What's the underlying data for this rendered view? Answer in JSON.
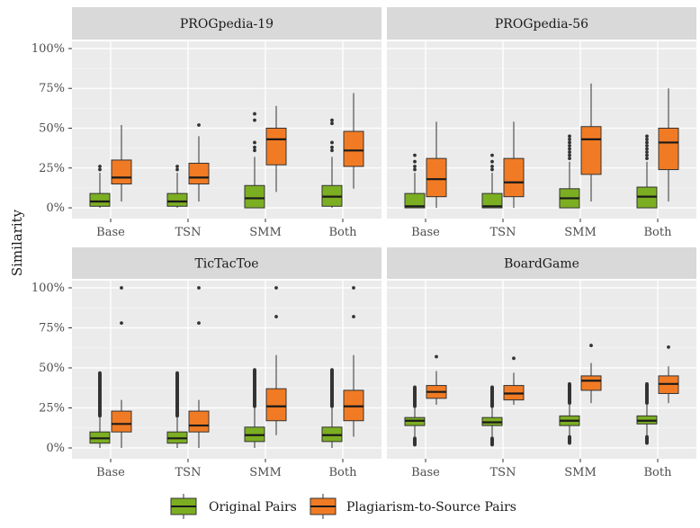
{
  "chart_data": {
    "type": "boxplot",
    "ylabel": "Similarity",
    "y_ticks": [
      "0%",
      "25%",
      "50%",
      "75%",
      "100%"
    ],
    "ylim": [
      0,
      1
    ],
    "categories": [
      "Base",
      "TSN",
      "SMM",
      "Both"
    ],
    "legend": {
      "position": "bottom",
      "entries": [
        {
          "name": "Original Pairs",
          "color": "#7cae22"
        },
        {
          "name": "Plagiarism-to-Source Pairs",
          "color": "#f07b24"
        }
      ]
    },
    "panels": [
      {
        "title": "PROGpedia-19",
        "groups": [
          {
            "category": "Base",
            "original": {
              "min": 0.0,
              "q1": 0.01,
              "median": 0.04,
              "q3": 0.09,
              "max": 0.22,
              "outliers": [
                0.24,
                0.26
              ]
            },
            "plagiarism": {
              "min": 0.04,
              "q1": 0.15,
              "median": 0.19,
              "q3": 0.3,
              "max": 0.52,
              "outliers": []
            }
          },
          {
            "category": "TSN",
            "original": {
              "min": 0.0,
              "q1": 0.01,
              "median": 0.04,
              "q3": 0.09,
              "max": 0.22,
              "outliers": [
                0.24,
                0.26
              ]
            },
            "plagiarism": {
              "min": 0.04,
              "q1": 0.15,
              "median": 0.19,
              "q3": 0.28,
              "max": 0.45,
              "outliers": [
                0.52
              ]
            }
          },
          {
            "category": "SMM",
            "original": {
              "min": 0.0,
              "q1": 0.0,
              "median": 0.06,
              "q3": 0.14,
              "max": 0.32,
              "outliers": [
                0.36,
                0.38,
                0.41,
                0.55,
                0.59
              ]
            },
            "plagiarism": {
              "min": 0.1,
              "q1": 0.27,
              "median": 0.43,
              "q3": 0.5,
              "max": 0.64,
              "outliers": []
            }
          },
          {
            "category": "Both",
            "original": {
              "min": 0.0,
              "q1": 0.01,
              "median": 0.07,
              "q3": 0.14,
              "max": 0.32,
              "outliers": [
                0.36,
                0.38,
                0.41,
                0.53,
                0.55
              ]
            },
            "plagiarism": {
              "min": 0.12,
              "q1": 0.26,
              "median": 0.36,
              "q3": 0.48,
              "max": 0.72,
              "outliers": []
            }
          }
        ]
      },
      {
        "title": "PROGpedia-56",
        "groups": [
          {
            "category": "Base",
            "original": {
              "min": 0.0,
              "q1": 0.0,
              "median": 0.01,
              "q3": 0.09,
              "max": 0.22,
              "outliers": [
                0.24,
                0.26,
                0.29,
                0.33
              ]
            },
            "plagiarism": {
              "min": 0.0,
              "q1": 0.07,
              "median": 0.18,
              "q3": 0.31,
              "max": 0.54,
              "outliers": []
            }
          },
          {
            "category": "TSN",
            "original": {
              "min": 0.0,
              "q1": 0.0,
              "median": 0.01,
              "q3": 0.09,
              "max": 0.22,
              "outliers": [
                0.24,
                0.26,
                0.29,
                0.33
              ]
            },
            "plagiarism": {
              "min": 0.0,
              "q1": 0.07,
              "median": 0.16,
              "q3": 0.31,
              "max": 0.54,
              "outliers": []
            }
          },
          {
            "category": "SMM",
            "original": {
              "min": 0.0,
              "q1": 0.0,
              "median": 0.06,
              "q3": 0.12,
              "max": 0.29,
              "outliers": [
                0.31,
                0.33,
                0.35,
                0.37,
                0.39,
                0.41,
                0.43,
                0.45
              ]
            },
            "plagiarism": {
              "min": 0.04,
              "q1": 0.21,
              "median": 0.43,
              "q3": 0.51,
              "max": 0.78,
              "outliers": []
            }
          },
          {
            "category": "Both",
            "original": {
              "min": 0.0,
              "q1": 0.0,
              "median": 0.07,
              "q3": 0.13,
              "max": 0.29,
              "outliers": [
                0.31,
                0.33,
                0.35,
                0.37,
                0.39,
                0.41,
                0.43,
                0.45
              ]
            },
            "plagiarism": {
              "min": 0.04,
              "q1": 0.24,
              "median": 0.41,
              "q3": 0.5,
              "max": 0.75,
              "outliers": []
            }
          }
        ]
      },
      {
        "title": "TicTacToe",
        "groups": [
          {
            "category": "Base",
            "original": {
              "min": 0.0,
              "q1": 0.03,
              "median": 0.06,
              "q3": 0.1,
              "max": 0.19,
              "outliers_range": [
                0.2,
                0.47
              ]
            },
            "plagiarism": {
              "min": 0.0,
              "q1": 0.1,
              "median": 0.15,
              "q3": 0.23,
              "max": 0.3,
              "outliers": [
                0.78,
                1.0
              ]
            }
          },
          {
            "category": "TSN",
            "original": {
              "min": 0.0,
              "q1": 0.03,
              "median": 0.06,
              "q3": 0.1,
              "max": 0.19,
              "outliers_range": [
                0.2,
                0.47
              ]
            },
            "plagiarism": {
              "min": 0.0,
              "q1": 0.1,
              "median": 0.14,
              "q3": 0.23,
              "max": 0.3,
              "outliers": [
                0.78,
                1.0
              ]
            }
          },
          {
            "category": "SMM",
            "original": {
              "min": 0.0,
              "q1": 0.04,
              "median": 0.08,
              "q3": 0.13,
              "max": 0.25,
              "outliers_range": [
                0.26,
                0.49
              ]
            },
            "plagiarism": {
              "min": 0.08,
              "q1": 0.17,
              "median": 0.26,
              "q3": 0.37,
              "max": 0.58,
              "outliers": [
                0.82,
                1.0
              ]
            }
          },
          {
            "category": "Both",
            "original": {
              "min": 0.0,
              "q1": 0.04,
              "median": 0.08,
              "q3": 0.13,
              "max": 0.25,
              "outliers_range": [
                0.26,
                0.49
              ]
            },
            "plagiarism": {
              "min": 0.07,
              "q1": 0.17,
              "median": 0.26,
              "q3": 0.36,
              "max": 0.58,
              "outliers": [
                0.82,
                1.0
              ]
            }
          }
        ]
      },
      {
        "title": "BoardGame",
        "groups": [
          {
            "category": "Base",
            "original": {
              "min": 0.07,
              "q1": 0.14,
              "median": 0.17,
              "q3": 0.19,
              "max": 0.25,
              "outliers_range_low": [
                0.02,
                0.06
              ],
              "outliers_range_high": [
                0.26,
                0.38
              ]
            },
            "plagiarism": {
              "min": 0.27,
              "q1": 0.31,
              "median": 0.35,
              "q3": 0.39,
              "max": 0.48,
              "outliers": [
                0.57
              ]
            }
          },
          {
            "category": "TSN",
            "original": {
              "min": 0.07,
              "q1": 0.14,
              "median": 0.16,
              "q3": 0.19,
              "max": 0.25,
              "outliers_range_low": [
                0.02,
                0.06
              ],
              "outliers_range_high": [
                0.26,
                0.38
              ]
            },
            "plagiarism": {
              "min": 0.27,
              "q1": 0.3,
              "median": 0.34,
              "q3": 0.39,
              "max": 0.47,
              "outliers": [
                0.56
              ]
            }
          },
          {
            "category": "SMM",
            "original": {
              "min": 0.08,
              "q1": 0.14,
              "median": 0.17,
              "q3": 0.2,
              "max": 0.27,
              "outliers_range_low": [
                0.03,
                0.07
              ],
              "outliers_range_high": [
                0.28,
                0.4
              ]
            },
            "plagiarism": {
              "min": 0.28,
              "q1": 0.36,
              "median": 0.42,
              "q3": 0.45,
              "max": 0.53,
              "outliers": [
                0.64
              ]
            }
          },
          {
            "category": "Both",
            "original": {
              "min": 0.08,
              "q1": 0.15,
              "median": 0.17,
              "q3": 0.2,
              "max": 0.27,
              "outliers_range_low": [
                0.03,
                0.07
              ],
              "outliers_range_high": [
                0.28,
                0.4
              ]
            },
            "plagiarism": {
              "min": 0.28,
              "q1": 0.34,
              "median": 0.4,
              "q3": 0.45,
              "max": 0.51,
              "outliers": [
                0.63
              ]
            }
          }
        ]
      }
    ]
  }
}
